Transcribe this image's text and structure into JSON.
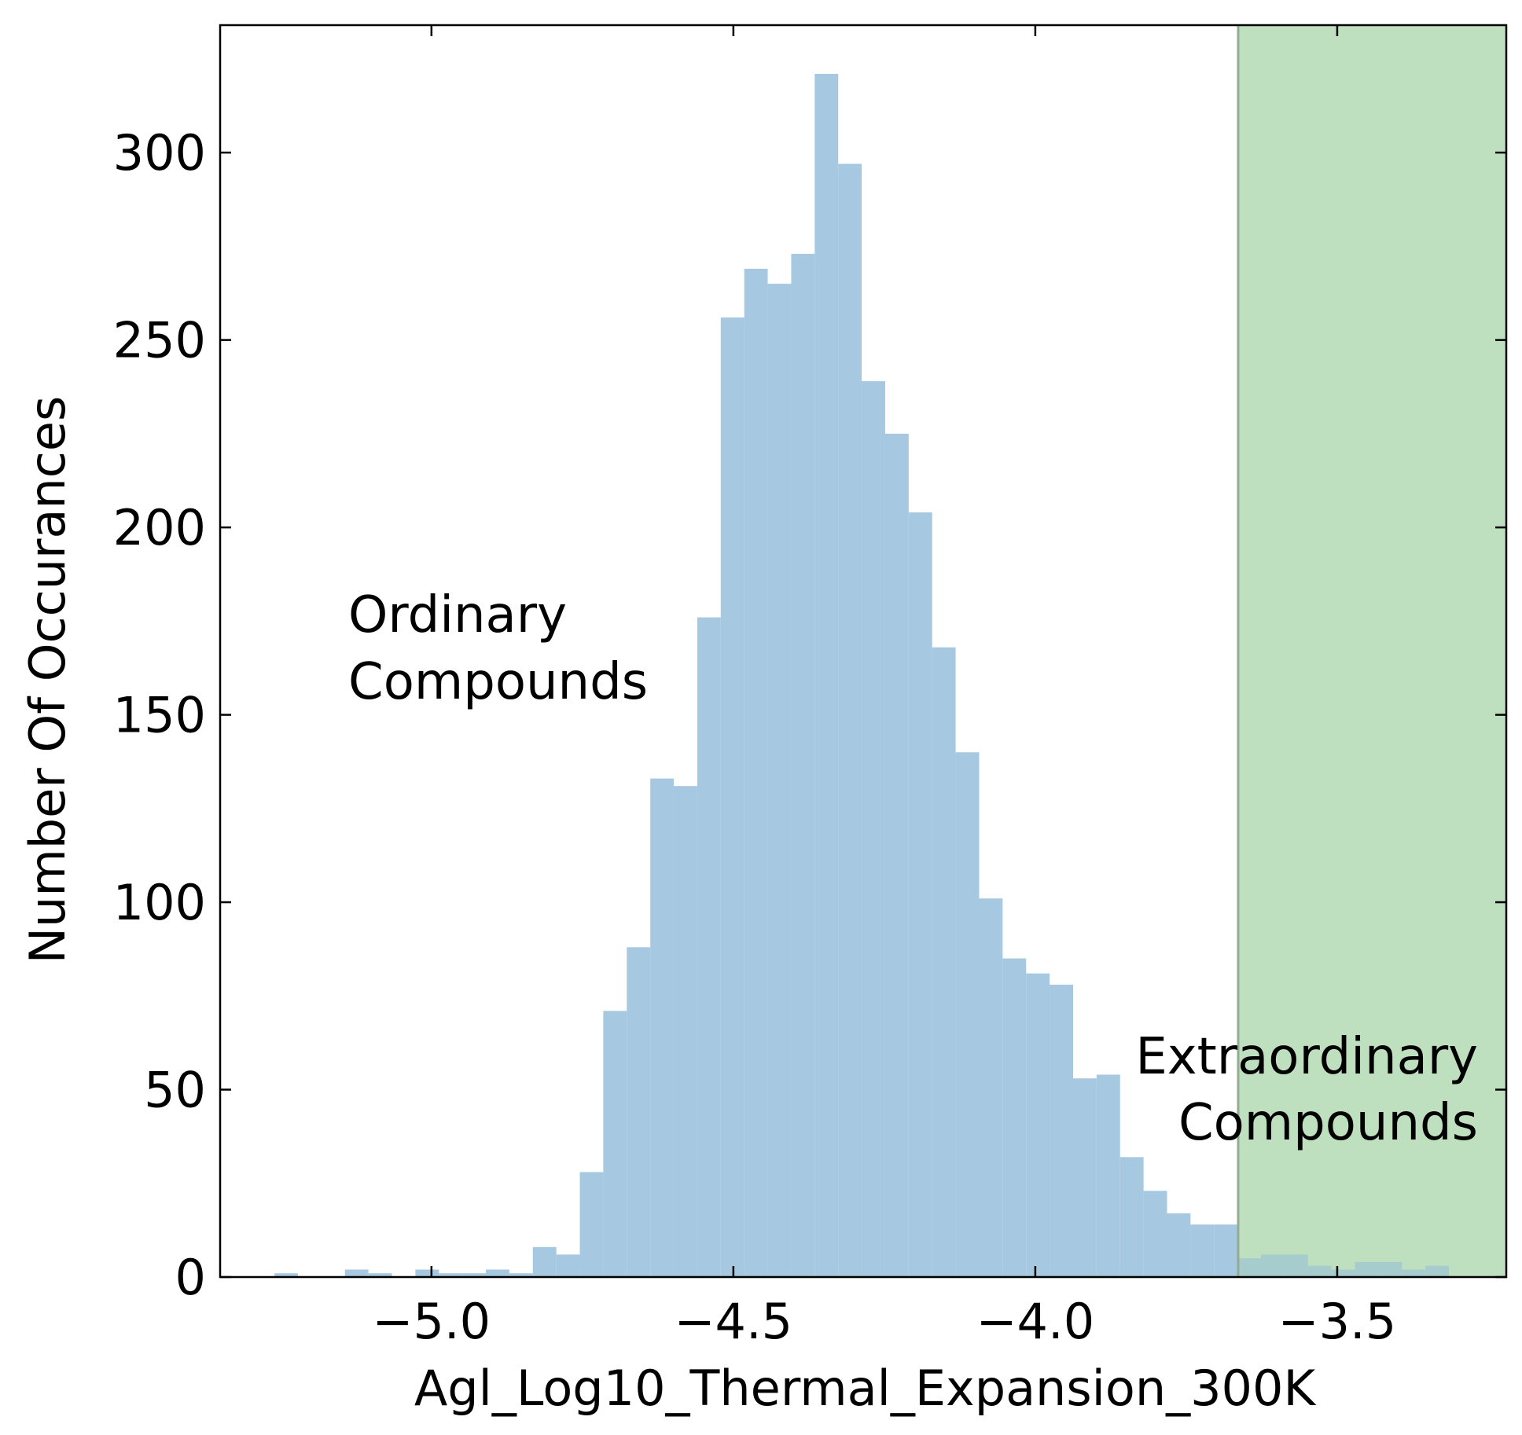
{
  "chart_data": {
    "type": "bar",
    "title": "",
    "xlabel": "Agl_Log10_Thermal_Expansion_300K",
    "ylabel": "Number Of Occurances",
    "xlim": [
      -5.35,
      -3.22
    ],
    "ylim": [
      0,
      320
    ],
    "xticks": [
      {
        "value": -5.0,
        "label": "−5.0"
      },
      {
        "value": -4.5,
        "label": "−4.5"
      },
      {
        "value": -4.0,
        "label": "−4.0"
      },
      {
        "value": -3.5,
        "label": "−3.5"
      }
    ],
    "yticks": [
      {
        "value": 0,
        "label": "0"
      },
      {
        "value": 50,
        "label": "50"
      },
      {
        "value": 100,
        "label": "100"
      },
      {
        "value": 150,
        "label": "150"
      },
      {
        "value": 200,
        "label": "200"
      },
      {
        "value": 250,
        "label": "250"
      },
      {
        "value": 300,
        "label": "300"
      }
    ],
    "grid": false,
    "bar_color": "#a6c8e0",
    "bin_width": 0.0389,
    "bins_start": -5.26,
    "counts": [
      1,
      0,
      0,
      2,
      1,
      0,
      2,
      1,
      1,
      2,
      1,
      8,
      6,
      28,
      71,
      88,
      133,
      131,
      176,
      256,
      269,
      265,
      273,
      321,
      297,
      239,
      225,
      204,
      168,
      140,
      101,
      85,
      81,
      78,
      53,
      54,
      32,
      23,
      17,
      14,
      14,
      5,
      6,
      6,
      3,
      2,
      4,
      4,
      2,
      3
    ],
    "threshold": {
      "x": -3.664,
      "color": "#a8d5a8",
      "line_color": "#93ab93"
    },
    "annotations": [
      {
        "lines": [
          "Ordinary",
          "Compounds"
        ],
        "align": "left"
      },
      {
        "lines": [
          "Extraordinary",
          "Compounds"
        ],
        "align": "right"
      }
    ]
  }
}
